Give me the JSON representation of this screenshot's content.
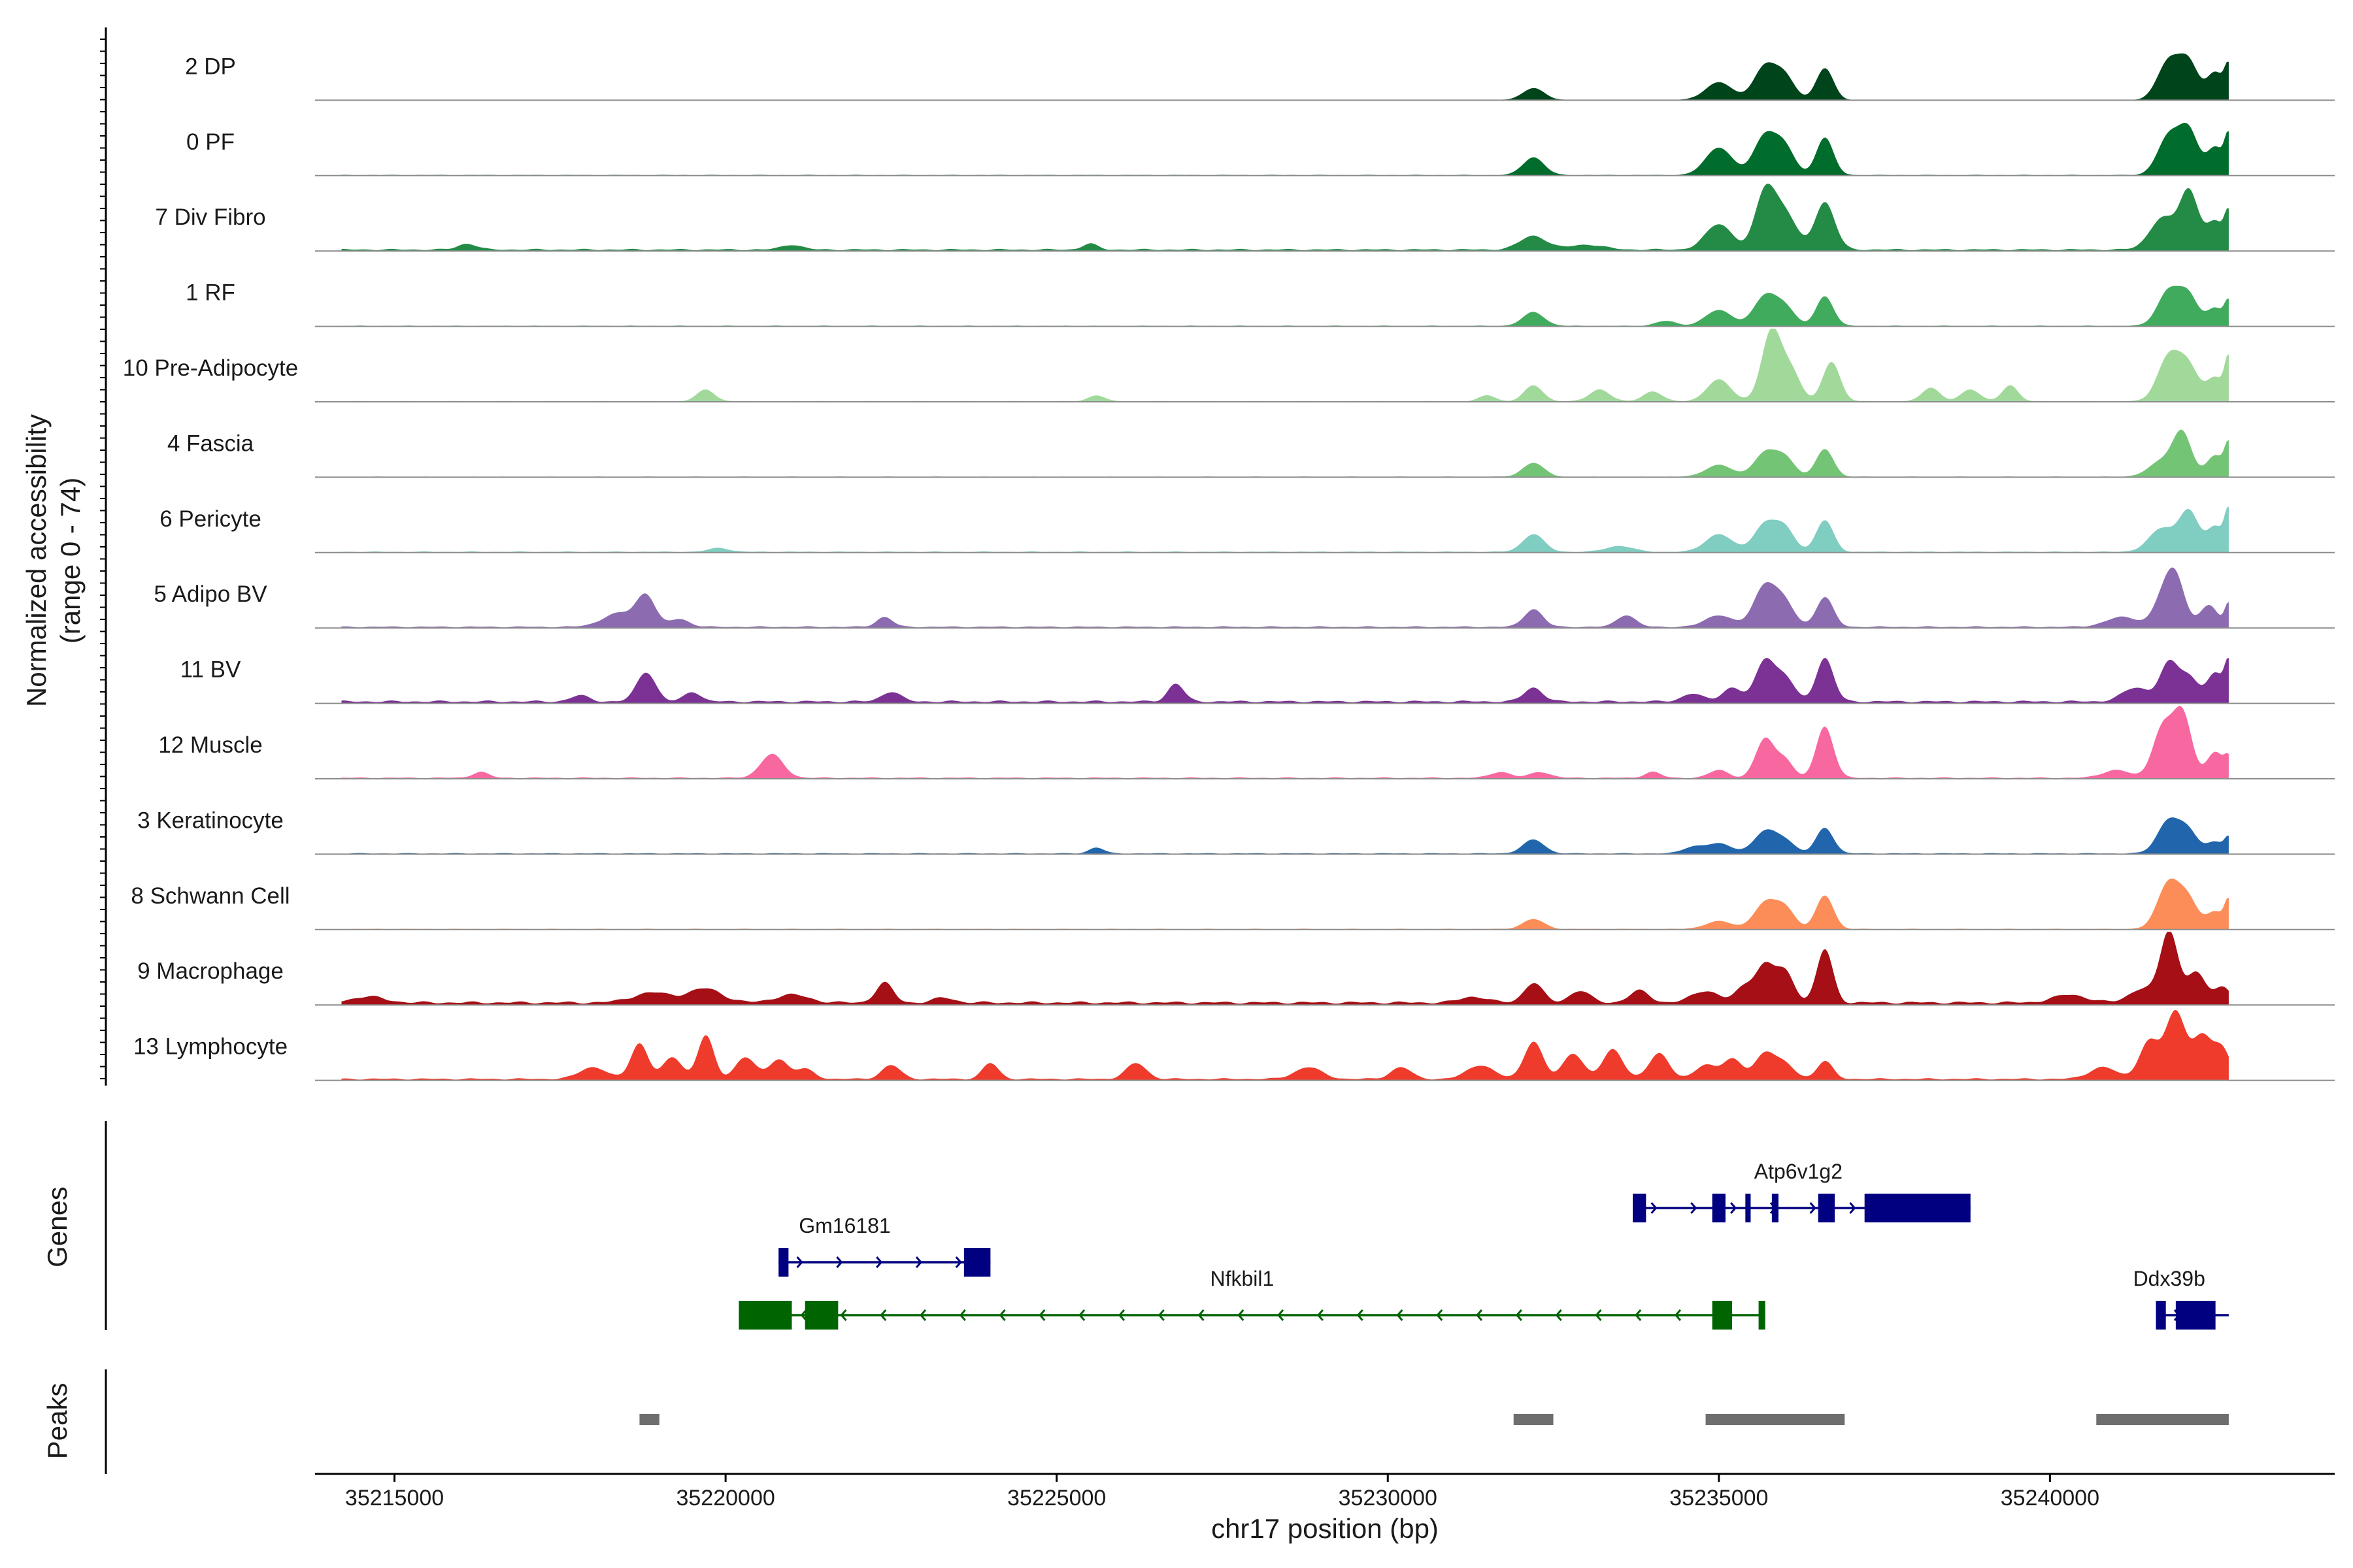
{
  "chart_data": {
    "type": "area",
    "title": "",
    "y_axis_label": "Normalized accessibility",
    "y_axis_range_label": "(range 0 - 74)",
    "ylim": [
      0,
      74
    ],
    "xlabel": "chr17 position (bp)",
    "xlim": [
      35213800,
      35244300
    ],
    "x_ticks": [
      35215000,
      35220000,
      35225000,
      35230000,
      35235000,
      35240000
    ],
    "x_tick_labels": [
      "35215000",
      "35220000",
      "35225000",
      "35230000",
      "35235000",
      "35240000"
    ],
    "track_start": 35214200,
    "track_end": 35242700,
    "tracks": [
      {
        "name": "2 DP",
        "color": "#00441b",
        "baseline": 0.4,
        "peaks": [
          [
            35232200,
            160,
            12
          ],
          [
            35235000,
            200,
            18
          ],
          [
            35235700,
            170,
            34
          ],
          [
            35236000,
            150,
            22
          ],
          [
            35236600,
            130,
            32
          ],
          [
            35241800,
            170,
            40
          ],
          [
            35242100,
            140,
            35
          ],
          [
            35242500,
            130,
            28
          ],
          [
            35242700,
            60,
            30
          ]
        ]
      },
      {
        "name": "0 PF",
        "color": "#006d2c",
        "baseline": 0.6,
        "peaks": [
          [
            35232200,
            160,
            18
          ],
          [
            35235000,
            200,
            28
          ],
          [
            35235700,
            170,
            40
          ],
          [
            35236000,
            150,
            26
          ],
          [
            35236600,
            130,
            38
          ],
          [
            35241800,
            170,
            40
          ],
          [
            35242100,
            140,
            42
          ],
          [
            35242500,
            130,
            28
          ],
          [
            35242700,
            60,
            36
          ]
        ]
      },
      {
        "name": "7 Div Fibro",
        "color": "#238b45",
        "baseline": 1.5,
        "peaks": [
          [
            35216100,
            140,
            6
          ],
          [
            35221000,
            150,
            5
          ],
          [
            35225500,
            110,
            6
          ],
          [
            35232200,
            200,
            14
          ],
          [
            35233000,
            250,
            5
          ],
          [
            35235000,
            200,
            26
          ],
          [
            35235700,
            150,
            58
          ],
          [
            35236000,
            170,
            36
          ],
          [
            35236600,
            150,
            48
          ],
          [
            35241700,
            190,
            32
          ],
          [
            35242100,
            140,
            58
          ],
          [
            35242500,
            140,
            28
          ],
          [
            35242700,
            60,
            32
          ]
        ]
      },
      {
        "name": "1 RF",
        "color": "#41ab5d",
        "baseline": 0.6,
        "peaks": [
          [
            35232200,
            160,
            14
          ],
          [
            35234200,
            150,
            5
          ],
          [
            35235000,
            200,
            16
          ],
          [
            35235700,
            170,
            30
          ],
          [
            35236000,
            150,
            18
          ],
          [
            35236600,
            130,
            30
          ],
          [
            35241800,
            170,
            36
          ],
          [
            35242100,
            140,
            28
          ],
          [
            35242500,
            130,
            18
          ],
          [
            35242700,
            60,
            22
          ]
        ]
      },
      {
        "name": "10 Pre-Adipocyte",
        "color": "#a1d99b",
        "baseline": 0.6,
        "peaks": [
          [
            35219700,
            130,
            12
          ],
          [
            35225600,
            120,
            6
          ],
          [
            35231500,
            120,
            6
          ],
          [
            35232200,
            140,
            16
          ],
          [
            35233200,
            150,
            12
          ],
          [
            35234000,
            140,
            10
          ],
          [
            35235000,
            180,
            22
          ],
          [
            35235800,
            150,
            72
          ],
          [
            35236100,
            140,
            28
          ],
          [
            35236700,
            130,
            40
          ],
          [
            35238200,
            130,
            14
          ],
          [
            35238800,
            140,
            12
          ],
          [
            35239400,
            120,
            16
          ],
          [
            35241800,
            170,
            46
          ],
          [
            35242100,
            150,
            32
          ],
          [
            35242500,
            130,
            24
          ],
          [
            35242700,
            60,
            40
          ]
        ]
      },
      {
        "name": "4 Fascia",
        "color": "#74c476",
        "baseline": 0.5,
        "peaks": [
          [
            35232200,
            160,
            14
          ],
          [
            35235000,
            200,
            12
          ],
          [
            35235700,
            170,
            24
          ],
          [
            35236000,
            150,
            18
          ],
          [
            35236600,
            130,
            28
          ],
          [
            35241700,
            200,
            16
          ],
          [
            35242000,
            140,
            42
          ],
          [
            35242500,
            130,
            22
          ],
          [
            35242700,
            60,
            30
          ]
        ]
      },
      {
        "name": "6 Pericyte",
        "color": "#80cdc1",
        "baseline": 0.8,
        "peaks": [
          [
            35219900,
            150,
            4
          ],
          [
            35232200,
            160,
            18
          ],
          [
            35233500,
            200,
            6
          ],
          [
            35235000,
            200,
            18
          ],
          [
            35235700,
            170,
            28
          ],
          [
            35236000,
            150,
            22
          ],
          [
            35236600,
            130,
            32
          ],
          [
            35241700,
            200,
            24
          ],
          [
            35242100,
            140,
            40
          ],
          [
            35242500,
            130,
            26
          ],
          [
            35242700,
            60,
            38
          ]
        ]
      },
      {
        "name": "5 Adipo BV",
        "color": "#8c6bb1",
        "baseline": 1.2,
        "peaks": [
          [
            35218400,
            250,
            14
          ],
          [
            35218800,
            140,
            30
          ],
          [
            35219300,
            150,
            8
          ],
          [
            35222400,
            120,
            10
          ],
          [
            35232200,
            140,
            18
          ],
          [
            35233600,
            140,
            12
          ],
          [
            35235000,
            200,
            12
          ],
          [
            35235700,
            170,
            42
          ],
          [
            35236000,
            150,
            22
          ],
          [
            35236600,
            130,
            30
          ],
          [
            35241100,
            250,
            10
          ],
          [
            35241700,
            140,
            26
          ],
          [
            35241900,
            140,
            48
          ],
          [
            35242400,
            130,
            22
          ],
          [
            35242700,
            60,
            24
          ]
        ]
      },
      {
        "name": "11 BV",
        "color": "#7b3294",
        "baseline": 2.0,
        "peaks": [
          [
            35217800,
            140,
            6
          ],
          [
            35218800,
            140,
            30
          ],
          [
            35219500,
            120,
            10
          ],
          [
            35222500,
            140,
            10
          ],
          [
            35226800,
            120,
            18
          ],
          [
            35232200,
            140,
            14
          ],
          [
            35234600,
            150,
            8
          ],
          [
            35235200,
            150,
            14
          ],
          [
            35235700,
            140,
            42
          ],
          [
            35236000,
            140,
            24
          ],
          [
            35236600,
            130,
            44
          ],
          [
            35241300,
            200,
            14
          ],
          [
            35241800,
            140,
            38
          ],
          [
            35242100,
            140,
            24
          ],
          [
            35242500,
            130,
            28
          ],
          [
            35242700,
            60,
            36
          ]
        ]
      },
      {
        "name": "12 Muscle",
        "color": "#f768a1",
        "baseline": 1.0,
        "peaks": [
          [
            35216300,
            120,
            6
          ],
          [
            35220700,
            170,
            24
          ],
          [
            35231700,
            150,
            6
          ],
          [
            35232300,
            150,
            6
          ],
          [
            35234000,
            120,
            6
          ],
          [
            35235000,
            140,
            8
          ],
          [
            35235700,
            140,
            40
          ],
          [
            35236000,
            120,
            18
          ],
          [
            35236600,
            130,
            52
          ],
          [
            35241000,
            200,
            8
          ],
          [
            35241700,
            150,
            50
          ],
          [
            35242000,
            140,
            64
          ],
          [
            35242500,
            130,
            26
          ],
          [
            35242700,
            60,
            16
          ]
        ]
      },
      {
        "name": "3 Keratinocyte",
        "color": "#2166ac",
        "baseline": 0.8,
        "peaks": [
          [
            35225600,
            110,
            6
          ],
          [
            35232200,
            160,
            14
          ],
          [
            35234600,
            150,
            6
          ],
          [
            35235000,
            200,
            10
          ],
          [
            35235700,
            170,
            22
          ],
          [
            35236000,
            150,
            12
          ],
          [
            35236600,
            130,
            26
          ],
          [
            35241800,
            170,
            34
          ],
          [
            35242100,
            140,
            20
          ],
          [
            35242500,
            130,
            12
          ],
          [
            35242700,
            60,
            14
          ]
        ]
      },
      {
        "name": "8 Schwann Cell",
        "color": "#fc8d59",
        "baseline": 0.6,
        "peaks": [
          [
            35232200,
            160,
            10
          ],
          [
            35235000,
            200,
            8
          ],
          [
            35235700,
            170,
            26
          ],
          [
            35236000,
            150,
            20
          ],
          [
            35236600,
            130,
            34
          ],
          [
            35241800,
            170,
            48
          ],
          [
            35242100,
            140,
            26
          ],
          [
            35242500,
            130,
            18
          ],
          [
            35242700,
            60,
            26
          ]
        ]
      },
      {
        "name": "9 Macrophage",
        "color": "#a50f15",
        "baseline": 2.5,
        "peaks": [
          [
            35214600,
            250,
            6
          ],
          [
            35218900,
            300,
            10
          ],
          [
            35219700,
            250,
            14
          ],
          [
            35221000,
            250,
            8
          ],
          [
            35222400,
            130,
            20
          ],
          [
            35223300,
            150,
            5
          ],
          [
            35231300,
            200,
            6
          ],
          [
            35232200,
            140,
            20
          ],
          [
            35232900,
            150,
            12
          ],
          [
            35233800,
            150,
            12
          ],
          [
            35234800,
            200,
            12
          ],
          [
            35235400,
            140,
            16
          ],
          [
            35235700,
            140,
            36
          ],
          [
            35236000,
            140,
            30
          ],
          [
            35236600,
            120,
            54
          ],
          [
            35240300,
            250,
            8
          ],
          [
            35241400,
            200,
            14
          ],
          [
            35241800,
            130,
            72
          ],
          [
            35242200,
            140,
            30
          ],
          [
            35242600,
            130,
            16
          ]
        ]
      },
      {
        "name": "13 Lymphocyte",
        "color": "#ef3b2c",
        "baseline": 1.5,
        "peaks": [
          [
            35218000,
            200,
            12
          ],
          [
            35218700,
            130,
            36
          ],
          [
            35219200,
            140,
            22
          ],
          [
            35219700,
            120,
            44
          ],
          [
            35220300,
            150,
            22
          ],
          [
            35220800,
            140,
            20
          ],
          [
            35221200,
            140,
            10
          ],
          [
            35222500,
            140,
            14
          ],
          [
            35224000,
            120,
            16
          ],
          [
            35226200,
            150,
            16
          ],
          [
            35228800,
            200,
            12
          ],
          [
            35230200,
            150,
            12
          ],
          [
            35231400,
            200,
            14
          ],
          [
            35232200,
            140,
            38
          ],
          [
            35232800,
            150,
            26
          ],
          [
            35233400,
            150,
            30
          ],
          [
            35234100,
            150,
            26
          ],
          [
            35234800,
            150,
            14
          ],
          [
            35235200,
            150,
            20
          ],
          [
            35235700,
            150,
            26
          ],
          [
            35236000,
            150,
            14
          ],
          [
            35236600,
            120,
            18
          ],
          [
            35240800,
            200,
            12
          ],
          [
            35241500,
            150,
            38
          ],
          [
            35241900,
            150,
            68
          ],
          [
            35242300,
            140,
            42
          ],
          [
            35242600,
            130,
            30
          ]
        ]
      }
    ],
    "genes_label": "Genes",
    "genes": [
      {
        "name": "Gm16181",
        "strand": "+",
        "color": "#000080",
        "row": 1,
        "label_x": 35221800,
        "start": 35220800,
        "end": 35224000,
        "exons": [
          [
            35220800,
            35220950
          ],
          [
            35223600,
            35224000
          ]
        ]
      },
      {
        "name": "Nfkbil1",
        "strand": "-",
        "color": "#006400",
        "row": 2,
        "label_x": 35227800,
        "start": 35220200,
        "end": 35235700,
        "exons": [
          [
            35220200,
            35221000
          ],
          [
            35221200,
            35221700
          ],
          [
            35234900,
            35235200
          ],
          [
            35235600,
            35235700
          ]
        ]
      },
      {
        "name": "Atp6v1g2",
        "strand": "+",
        "color": "#000080",
        "row": 0,
        "label_x": 35236200,
        "start": 35233700,
        "end": 35238800,
        "exons": [
          [
            35233700,
            35233900
          ],
          [
            35234900,
            35235100
          ],
          [
            35235400,
            35235480
          ],
          [
            35235800,
            35235900
          ],
          [
            35236500,
            35236750
          ],
          [
            35237200,
            35238800
          ]
        ]
      },
      {
        "name": "Ddx39b",
        "strand": "+",
        "color": "#000080",
        "row": 2,
        "label_x": 35241800,
        "start": 35241600,
        "end": 35242700,
        "exons": [
          [
            35241600,
            35241750
          ],
          [
            35241900,
            35242500
          ]
        ]
      }
    ],
    "peaks_label": "Peaks",
    "peak_regions": [
      [
        35218700,
        35219000
      ],
      [
        35231900,
        35232500
      ],
      [
        35234800,
        35236900
      ],
      [
        35240700,
        35242700
      ]
    ],
    "peak_color": "#6e6e6e"
  }
}
